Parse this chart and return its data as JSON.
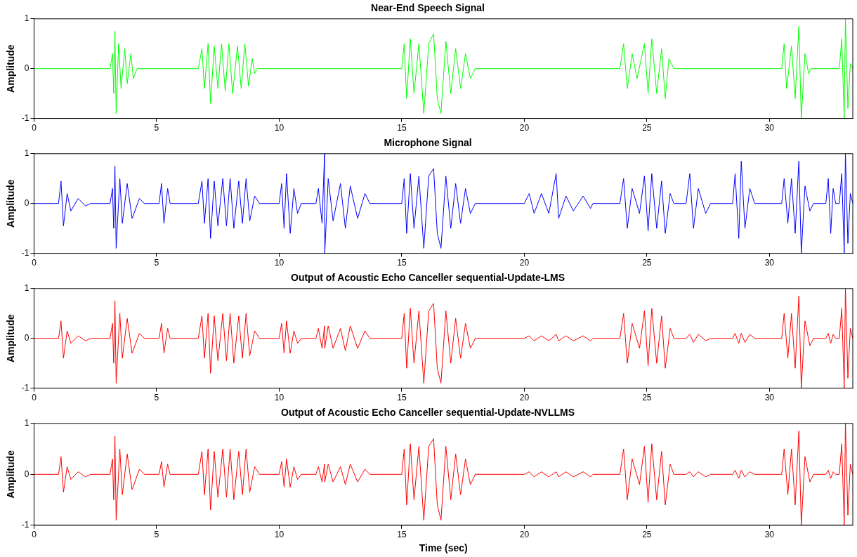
{
  "chart_data": [
    {
      "type": "line",
      "title": "Near-End Speech Signal",
      "ylabel": "Amplitude",
      "marker": "none",
      "xlim": [
        0,
        33.4
      ],
      "ylim": [
        -1,
        1
      ],
      "xticks": [
        0,
        5,
        10,
        15,
        20,
        25,
        30
      ],
      "yticks": [
        -1,
        0,
        1
      ],
      "x": [
        0,
        3.1,
        3.2,
        3.25,
        3.3,
        3.35,
        3.45,
        3.55,
        3.7,
        3.8,
        3.95,
        4.05,
        4.2,
        6.7,
        6.85,
        6.95,
        7.1,
        7.2,
        7.35,
        7.5,
        7.65,
        7.8,
        7.95,
        8.1,
        8.3,
        8.45,
        8.6,
        8.75,
        8.9,
        9.0,
        9.1,
        15.0,
        15.1,
        15.2,
        15.35,
        15.5,
        15.7,
        15.9,
        16.1,
        16.3,
        16.45,
        16.6,
        16.8,
        17.0,
        17.2,
        17.4,
        17.6,
        17.8,
        18.0,
        23.9,
        24.05,
        24.2,
        24.4,
        24.6,
        24.9,
        25.05,
        25.2,
        25.4,
        25.6,
        25.75,
        25.9,
        26.1,
        30.5,
        30.6,
        30.7,
        30.9,
        31.05,
        31.2,
        31.3,
        31.45,
        31.6,
        31.7,
        32.85,
        32.95,
        33.05,
        33.1,
        33.2,
        33.3,
        33.4
      ],
      "series": [
        {
          "color": "#00ff00",
          "values": [
            0,
            0,
            0.3,
            -0.5,
            0.75,
            -0.9,
            0.5,
            -0.4,
            0.4,
            -0.3,
            0.3,
            -0.2,
            0,
            0,
            0.4,
            -0.4,
            0.5,
            -0.7,
            0.45,
            -0.4,
            0.5,
            -0.45,
            0.5,
            -0.5,
            0.45,
            -0.4,
            0.5,
            -0.35,
            0.2,
            -0.1,
            0,
            0,
            0.5,
            -0.6,
            0.6,
            -0.5,
            0.5,
            -0.9,
            0.5,
            0.7,
            -0.6,
            -0.9,
            0.55,
            -0.5,
            0.4,
            -0.4,
            0.3,
            -0.2,
            0,
            0,
            0.5,
            -0.4,
            0.3,
            -0.2,
            0.5,
            -0.5,
            0.6,
            -0.5,
            0.4,
            -0.6,
            0.2,
            0,
            0,
            0.5,
            -0.4,
            0.45,
            -0.6,
            0.85,
            -1,
            0.3,
            -0.1,
            0,
            0,
            0.6,
            -1,
            1,
            -0.8,
            0.1,
            0
          ]
        }
      ]
    },
    {
      "type": "line",
      "title": "Microphone Signal",
      "ylabel": "Amplitude",
      "marker": "none",
      "xlim": [
        0,
        33.4
      ],
      "ylim": [
        -1,
        1
      ],
      "xticks": [
        0,
        5,
        10,
        15,
        20,
        25,
        30
      ],
      "yticks": [
        -1,
        0,
        1
      ],
      "x": [
        0,
        1.0,
        1.1,
        1.2,
        1.35,
        1.5,
        1.8,
        2.1,
        2.3,
        3.1,
        3.2,
        3.25,
        3.3,
        3.35,
        3.5,
        3.6,
        3.8,
        4.0,
        4.3,
        4.5,
        5.1,
        5.2,
        5.3,
        5.45,
        5.55,
        6.7,
        6.85,
        6.95,
        7.1,
        7.2,
        7.35,
        7.5,
        7.7,
        7.85,
        8.0,
        8.15,
        8.35,
        8.5,
        8.65,
        8.8,
        9.0,
        9.2,
        10.0,
        10.1,
        10.2,
        10.3,
        10.45,
        10.6,
        10.75,
        10.9,
        11.5,
        11.6,
        11.75,
        11.85,
        11.86,
        12.0,
        12.2,
        12.5,
        12.7,
        12.9,
        13.2,
        13.5,
        13.7,
        15.0,
        15.1,
        15.2,
        15.35,
        15.5,
        15.7,
        15.9,
        16.1,
        16.3,
        16.45,
        16.6,
        16.8,
        17.0,
        17.2,
        17.4,
        17.6,
        17.8,
        18.0,
        20.0,
        20.2,
        20.4,
        20.7,
        21.0,
        21.3,
        21.4,
        21.7,
        22.0,
        22.4,
        22.7,
        22.8,
        23.9,
        24.05,
        24.2,
        24.4,
        24.7,
        24.9,
        25.05,
        25.2,
        25.4,
        25.6,
        25.75,
        25.95,
        26.1,
        26.6,
        26.75,
        26.9,
        27.1,
        27.4,
        27.6,
        28.5,
        28.6,
        28.75,
        28.85,
        29.0,
        29.2,
        29.4,
        30.5,
        30.6,
        30.75,
        30.9,
        31.05,
        31.2,
        31.3,
        31.45,
        31.65,
        31.8,
        32.3,
        32.4,
        32.5,
        32.6,
        32.7,
        32.85,
        32.95,
        33.05,
        33.1,
        33.2,
        33.3,
        33.4
      ],
      "series": [
        {
          "color": "#0000ff",
          "values": [
            0,
            0,
            0.45,
            -0.45,
            0.2,
            -0.15,
            0.1,
            -0.05,
            0,
            0,
            0.3,
            -0.5,
            0.75,
            -0.9,
            0.5,
            -0.4,
            0.4,
            -0.3,
            0.1,
            0,
            0,
            0.4,
            -0.4,
            0.3,
            0,
            0,
            0.45,
            -0.4,
            0.5,
            -0.7,
            0.45,
            -0.45,
            0.5,
            -0.45,
            0.5,
            -0.5,
            0.45,
            -0.4,
            0.5,
            -0.35,
            0.15,
            0,
            0,
            0.4,
            -0.5,
            0.6,
            -0.6,
            0.3,
            -0.2,
            0,
            0,
            0.3,
            -0.4,
            1,
            -1,
            0.5,
            -0.35,
            0.4,
            -0.5,
            0.35,
            -0.3,
            0.2,
            0,
            0,
            0.5,
            -0.6,
            0.6,
            -0.5,
            0.55,
            -0.9,
            0.55,
            0.7,
            -0.6,
            -0.9,
            0.55,
            -0.5,
            0.4,
            -0.4,
            0.3,
            -0.2,
            0,
            0,
            0.2,
            -0.2,
            0.2,
            -0.2,
            0.6,
            -0.3,
            0.15,
            -0.15,
            0.15,
            -0.1,
            0,
            0,
            0.5,
            -0.5,
            0.3,
            -0.2,
            0.55,
            -0.55,
            0.6,
            -0.5,
            0.45,
            -0.6,
            0.2,
            0,
            0,
            0.6,
            -0.5,
            0.3,
            -0.2,
            0,
            0,
            0.6,
            -0.7,
            0.85,
            -0.5,
            0.3,
            0,
            0,
            0.5,
            -0.4,
            0.5,
            -0.6,
            0.85,
            -1,
            0.35,
            -0.15,
            0,
            0,
            0.5,
            -0.6,
            0.3,
            0,
            0,
            0.6,
            -1,
            1,
            -0.8,
            0.2,
            0
          ]
        }
      ]
    },
    {
      "type": "line",
      "title": "Output of Acoustic Echo Canceller sequential-Update-LMS",
      "ylabel": "Amplitude",
      "marker": "none",
      "xlim": [
        0,
        33.4
      ],
      "ylim": [
        -1,
        1
      ],
      "xticks": [
        0,
        5,
        10,
        15,
        20,
        25,
        30
      ],
      "yticks": [
        -1,
        0,
        1
      ],
      "x": [
        0,
        1.0,
        1.1,
        1.2,
        1.35,
        1.5,
        1.8,
        2.1,
        2.3,
        3.1,
        3.2,
        3.25,
        3.3,
        3.35,
        3.5,
        3.6,
        3.8,
        4.0,
        4.3,
        4.5,
        5.1,
        5.2,
        5.3,
        5.45,
        5.55,
        6.7,
        6.85,
        6.95,
        7.1,
        7.2,
        7.35,
        7.5,
        7.7,
        7.85,
        8.0,
        8.15,
        8.35,
        8.5,
        8.65,
        8.8,
        9.0,
        9.2,
        10.0,
        10.1,
        10.2,
        10.3,
        10.45,
        10.6,
        10.75,
        10.9,
        11.5,
        11.6,
        11.75,
        11.85,
        11.86,
        12.0,
        12.2,
        12.5,
        12.7,
        12.9,
        13.2,
        13.5,
        13.7,
        15.0,
        15.1,
        15.2,
        15.35,
        15.5,
        15.7,
        15.9,
        16.1,
        16.3,
        16.45,
        16.6,
        16.8,
        17.0,
        17.2,
        17.4,
        17.6,
        17.8,
        18.0,
        20.0,
        20.2,
        20.4,
        20.7,
        21.0,
        21.3,
        21.4,
        21.7,
        22.0,
        22.4,
        22.7,
        22.8,
        23.9,
        24.05,
        24.2,
        24.4,
        24.7,
        24.9,
        25.05,
        25.2,
        25.4,
        25.6,
        25.75,
        25.95,
        26.1,
        26.6,
        26.75,
        26.9,
        27.1,
        27.4,
        27.6,
        28.5,
        28.6,
        28.75,
        28.85,
        29.0,
        29.2,
        29.4,
        30.5,
        30.6,
        30.75,
        30.9,
        31.05,
        31.2,
        31.3,
        31.45,
        31.65,
        31.8,
        32.3,
        32.4,
        32.5,
        32.6,
        32.7,
        32.85,
        32.95,
        33.05,
        33.1,
        33.2,
        33.3,
        33.4
      ],
      "series": [
        {
          "color": "#ff0000",
          "values": [
            0,
            0,
            0.35,
            -0.4,
            0.15,
            -0.1,
            0.05,
            -0.05,
            0,
            0,
            0.3,
            -0.5,
            0.75,
            -0.9,
            0.5,
            -0.4,
            0.4,
            -0.3,
            0.1,
            0,
            0,
            0.3,
            -0.3,
            0.2,
            0,
            0,
            0.45,
            -0.4,
            0.5,
            -0.7,
            0.45,
            -0.45,
            0.5,
            -0.45,
            0.5,
            -0.5,
            0.45,
            -0.4,
            0.5,
            -0.35,
            0.15,
            0,
            0,
            0.3,
            -0.3,
            0.35,
            -0.3,
            0.15,
            -0.1,
            0,
            0,
            0.2,
            -0.2,
            0.25,
            -0.2,
            0.25,
            -0.2,
            0.2,
            -0.25,
            0.25,
            -0.2,
            0.15,
            0,
            0,
            0.5,
            -0.6,
            0.6,
            -0.5,
            0.55,
            -0.9,
            0.55,
            0.7,
            -0.6,
            -0.9,
            0.55,
            -0.5,
            0.4,
            -0.4,
            0.3,
            -0.2,
            0,
            0,
            0.05,
            -0.05,
            0.05,
            -0.05,
            0.08,
            -0.05,
            0.05,
            -0.05,
            0.05,
            -0.05,
            0,
            0,
            0.5,
            -0.5,
            0.3,
            -0.2,
            0.55,
            -0.55,
            0.6,
            -0.5,
            0.45,
            -0.6,
            0.2,
            0,
            0,
            0.08,
            -0.08,
            0.08,
            -0.05,
            0,
            0,
            0.1,
            -0.1,
            0.1,
            -0.08,
            0.08,
            0,
            0,
            0.5,
            -0.4,
            0.5,
            -0.6,
            0.85,
            -1,
            0.35,
            -0.15,
            0,
            0,
            0.1,
            -0.1,
            0.08,
            0,
            0,
            0.6,
            -1,
            1,
            -0.8,
            0.2,
            0
          ]
        }
      ]
    },
    {
      "type": "line",
      "title": "Output of Acoustic Echo Canceller sequential-Update-NVLLMS",
      "xlabel": "Time (sec)",
      "ylabel": "Amplitude",
      "marker": "none",
      "xlim": [
        0,
        33.4
      ],
      "ylim": [
        -1,
        1
      ],
      "xticks": [
        0,
        5,
        10,
        15,
        20,
        25,
        30
      ],
      "yticks": [
        -1,
        0,
        1
      ],
      "x": [
        0,
        1.0,
        1.1,
        1.2,
        1.35,
        1.5,
        1.8,
        2.1,
        2.3,
        3.1,
        3.2,
        3.25,
        3.3,
        3.35,
        3.5,
        3.6,
        3.8,
        4.0,
        4.3,
        4.5,
        5.1,
        5.2,
        5.3,
        5.45,
        5.55,
        6.7,
        6.85,
        6.95,
        7.1,
        7.2,
        7.35,
        7.5,
        7.7,
        7.85,
        8.0,
        8.15,
        8.35,
        8.5,
        8.65,
        8.8,
        9.0,
        9.2,
        10.0,
        10.1,
        10.2,
        10.3,
        10.45,
        10.6,
        10.75,
        10.9,
        11.5,
        11.6,
        11.75,
        11.85,
        11.86,
        12.0,
        12.2,
        12.5,
        12.7,
        12.9,
        13.2,
        13.5,
        13.7,
        15.0,
        15.1,
        15.2,
        15.35,
        15.5,
        15.7,
        15.9,
        16.1,
        16.3,
        16.45,
        16.6,
        16.8,
        17.0,
        17.2,
        17.4,
        17.6,
        17.8,
        18.0,
        20.0,
        20.2,
        20.4,
        20.7,
        21.0,
        21.3,
        21.4,
        21.7,
        22.0,
        22.4,
        22.7,
        22.8,
        23.9,
        24.05,
        24.2,
        24.4,
        24.7,
        24.9,
        25.05,
        25.2,
        25.4,
        25.6,
        25.75,
        25.95,
        26.1,
        26.6,
        26.75,
        26.9,
        27.1,
        27.4,
        27.6,
        28.5,
        28.6,
        28.75,
        28.85,
        29.0,
        29.2,
        29.4,
        30.5,
        30.6,
        30.75,
        30.9,
        31.05,
        31.2,
        31.3,
        31.45,
        31.65,
        31.8,
        32.3,
        32.4,
        32.5,
        32.6,
        32.7,
        32.85,
        32.95,
        33.05,
        33.1,
        33.2,
        33.3,
        33.4
      ],
      "series": [
        {
          "color": "#ff0000",
          "values": [
            0,
            0,
            0.35,
            -0.35,
            0.15,
            -0.1,
            0.05,
            -0.05,
            0,
            0,
            0.3,
            -0.5,
            0.75,
            -0.9,
            0.5,
            -0.4,
            0.4,
            -0.3,
            0.1,
            0,
            0,
            0.25,
            -0.25,
            0.2,
            0,
            0,
            0.45,
            -0.4,
            0.5,
            -0.7,
            0.45,
            -0.45,
            0.5,
            -0.45,
            0.5,
            -0.5,
            0.45,
            -0.4,
            0.5,
            -0.35,
            0.15,
            0,
            0,
            0.25,
            -0.25,
            0.3,
            -0.25,
            0.15,
            -0.1,
            0,
            0,
            0.15,
            -0.15,
            0.2,
            -0.15,
            0.2,
            -0.15,
            0.15,
            -0.2,
            0.2,
            -0.15,
            0.1,
            0,
            0,
            0.5,
            -0.6,
            0.6,
            -0.5,
            0.55,
            -0.9,
            0.55,
            0.7,
            -0.6,
            -0.9,
            0.55,
            -0.5,
            0.4,
            -0.4,
            0.3,
            -0.2,
            0,
            0,
            0.05,
            -0.05,
            0.05,
            -0.05,
            0.05,
            -0.05,
            0.05,
            -0.05,
            0.05,
            -0.05,
            0,
            0,
            0.5,
            -0.5,
            0.3,
            -0.2,
            0.55,
            -0.55,
            0.6,
            -0.5,
            0.45,
            -0.6,
            0.2,
            0,
            0,
            0.05,
            -0.05,
            0.05,
            -0.05,
            0,
            0,
            0.08,
            -0.08,
            0.08,
            -0.05,
            0.05,
            0,
            0,
            0.5,
            -0.4,
            0.5,
            -0.6,
            0.85,
            -1,
            0.35,
            -0.15,
            0,
            0,
            0.08,
            -0.08,
            0.05,
            0,
            0,
            0.6,
            -1,
            1,
            -0.8,
            0.2,
            0
          ]
        }
      ]
    }
  ]
}
